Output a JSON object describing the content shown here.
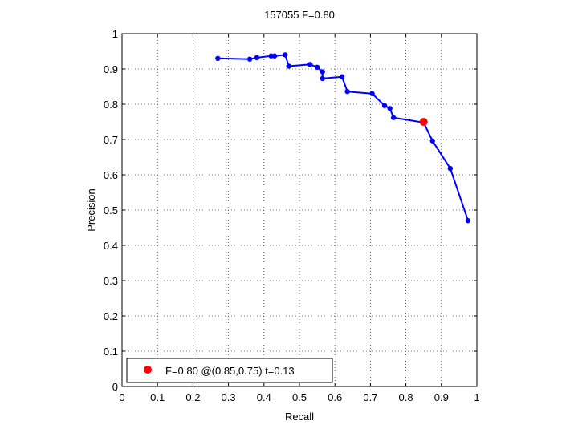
{
  "chart_data": {
    "type": "line",
    "title": "157055 F=0.80",
    "xlabel": "Recall",
    "ylabel": "Precision",
    "xlim": [
      0,
      1
    ],
    "ylim": [
      0,
      1
    ],
    "grid": true,
    "xticks": [
      "0",
      "0.1",
      "0.2",
      "0.3",
      "0.4",
      "0.5",
      "0.6",
      "0.7",
      "0.8",
      "0.9",
      "1"
    ],
    "yticks": [
      "0",
      "0.1",
      "0.2",
      "0.3",
      "0.4",
      "0.5",
      "0.6",
      "0.7",
      "0.8",
      "0.9",
      "1"
    ],
    "series": [
      {
        "color": "#0000ff",
        "marker": "dot",
        "x": [
          0.27,
          0.36,
          0.38,
          0.42,
          0.43,
          0.46,
          0.47,
          0.53,
          0.55,
          0.565,
          0.565,
          0.62,
          0.635,
          0.705,
          0.74,
          0.755,
          0.765,
          0.85,
          0.875,
          0.925,
          0.975
        ],
        "y": [
          0.93,
          0.928,
          0.932,
          0.937,
          0.937,
          0.94,
          0.908,
          0.913,
          0.905,
          0.892,
          0.873,
          0.878,
          0.836,
          0.83,
          0.796,
          0.788,
          0.762,
          0.748,
          0.696,
          0.618,
          0.47
        ]
      }
    ],
    "highlight": {
      "color": "#ff0000",
      "x": 0.85,
      "y": 0.75
    },
    "legend": {
      "location": "bottom-left",
      "entries": [
        {
          "label": "F=0.80 @(0.85,0.75) t=0.13",
          "color": "#ff0000",
          "marker": "dot"
        }
      ]
    }
  }
}
